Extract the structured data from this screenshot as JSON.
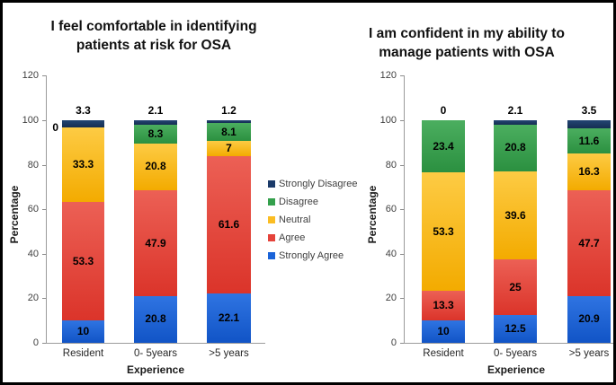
{
  "figure": {
    "background": "#ffffff",
    "border_color": "#000000",
    "axis_color": "#9b9b9b",
    "tick_label_color": "#404040"
  },
  "legend": {
    "position": "center-between-charts",
    "items": [
      {
        "name": "strongly-disagree",
        "label": "Strongly Disagree",
        "color": "#1b3a69"
      },
      {
        "name": "disagree",
        "label": "Disagree",
        "color": "#34a04c"
      },
      {
        "name": "neutral",
        "label": "Neutral",
        "color": "#fbbd23"
      },
      {
        "name": "agree",
        "label": "Agree",
        "color": "#e5433b"
      },
      {
        "name": "strongly-agree",
        "label": "Strongly Agree",
        "color": "#1a63d8"
      }
    ]
  },
  "chart_data": [
    {
      "type": "bar",
      "stacked": true,
      "title": "I feel comfortable in identifying patients at risk for OSA",
      "title_lines": [
        "I feel comfortable in identifying",
        "patients at risk for OSA"
      ],
      "categories": [
        "Resident",
        "0- 5years",
        ">5 years"
      ],
      "xlabel": "Experience",
      "ylabel": "Percentage",
      "ylim": [
        0,
        120
      ],
      "ytick_step": 20,
      "grid": false,
      "series": [
        {
          "name": "Strongly Agree",
          "color": "#1a63d8",
          "gradient": [
            "#2f74e2",
            "#1154c6"
          ],
          "values": [
            10,
            20.8,
            22.1
          ]
        },
        {
          "name": "Agree",
          "color": "#e5433b",
          "gradient": [
            "#ec6055",
            "#db342a"
          ],
          "values": [
            53.3,
            47.9,
            61.6
          ]
        },
        {
          "name": "Neutral",
          "color": "#fbbd23",
          "gradient": [
            "#fdcb44",
            "#f3ab00"
          ],
          "values": [
            33.3,
            20.8,
            7
          ]
        },
        {
          "name": "Disagree",
          "color": "#34a04c",
          "gradient": [
            "#4bae5f",
            "#2b9040"
          ],
          "values": [
            0,
            8.3,
            8.1
          ]
        },
        {
          "name": "Strongly Disagree",
          "color": "#1b3a69",
          "gradient": [
            "#234573",
            "#152e52"
          ],
          "values": [
            3.3,
            2.1,
            1.2
          ]
        }
      ]
    },
    {
      "type": "bar",
      "stacked": true,
      "title": "I am confident in my ability to manage patients with OSA",
      "title_lines": [
        "I am confident in my ability to",
        "manage patients with OSA"
      ],
      "categories": [
        "Resident",
        "0- 5years",
        ">5 years"
      ],
      "xlabel": "Experience",
      "ylabel": "Percentage",
      "ylim": [
        0,
        120
      ],
      "ytick_step": 20,
      "grid": false,
      "series": [
        {
          "name": "Strongly Agree",
          "color": "#1a63d8",
          "gradient": [
            "#2f74e2",
            "#1154c6"
          ],
          "values": [
            10,
            12.5,
            20.9
          ]
        },
        {
          "name": "Agree",
          "color": "#e5433b",
          "gradient": [
            "#ec6055",
            "#db342a"
          ],
          "values": [
            13.3,
            25,
            47.7
          ]
        },
        {
          "name": "Neutral",
          "color": "#fbbd23",
          "gradient": [
            "#fdcb44",
            "#f3ab00"
          ],
          "values": [
            53.3,
            39.6,
            16.3
          ]
        },
        {
          "name": "Disagree",
          "color": "#34a04c",
          "gradient": [
            "#4bae5f",
            "#2b9040"
          ],
          "values": [
            23.4,
            20.8,
            11.6
          ]
        },
        {
          "name": "Strongly Disagree",
          "color": "#1b3a69",
          "gradient": [
            "#234573",
            "#152e52"
          ],
          "values": [
            0,
            2.1,
            3.5
          ]
        }
      ]
    }
  ]
}
